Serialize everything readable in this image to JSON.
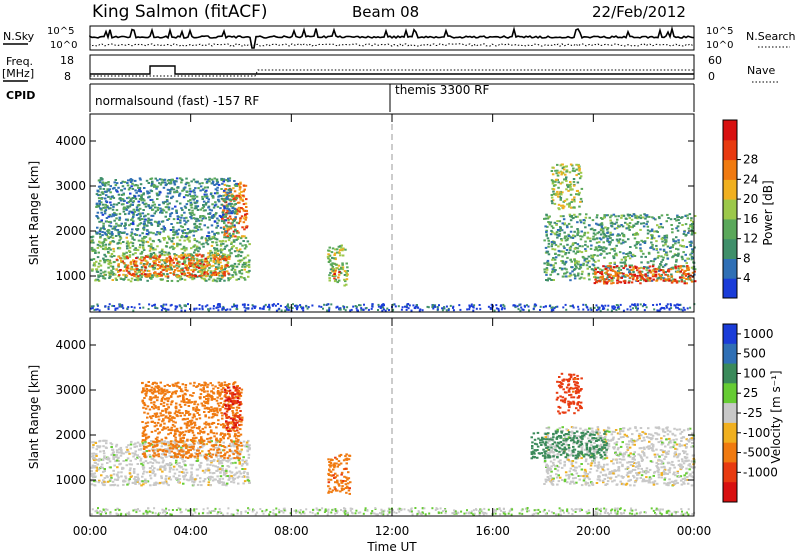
{
  "header": {
    "station": "King Salmon (fitACF)",
    "beam": "Beam 08",
    "date": "22/Feb/2012"
  },
  "top_panels": {
    "nsky_label": "N.Sky",
    "nsearch_label": "N.Search",
    "freq_label_1": "Freq.",
    "freq_label_2": "[MHz]",
    "nave_label": "Nave",
    "cpid_label": "CPID",
    "noise_left_ticks": [
      "10^5",
      "10^0"
    ],
    "noise_right_ticks": [
      "10^5",
      "10^0"
    ],
    "freq_ticks": [
      "18",
      "8"
    ],
    "nave_ticks": [
      "60",
      "0"
    ],
    "cpid_segments": [
      "normalsound (fast) -157 RF",
      "themis 3300 RF"
    ]
  },
  "colors": {
    "power_scale": [
      "#1a3cd8",
      "#2f6fb5",
      "#3f8f6a",
      "#5aa85a",
      "#9cc84a",
      "#f0b020",
      "#f07a10",
      "#e83a10",
      "#d81010"
    ],
    "velocity_scale": [
      "#1a3cd8",
      "#2f6fb5",
      "#3a8a5a",
      "#66cc33",
      "#c8c8c8",
      "#f0b020",
      "#f07a10",
      "#e83a10",
      "#d81010"
    ]
  },
  "chart_data": [
    {
      "type": "heatmap",
      "panel": "power",
      "ylabel": "Slant Range [km]",
      "ylim": [
        200,
        4600
      ],
      "yticks": [
        "1000",
        "2000",
        "3000",
        "4000"
      ],
      "colorbar_label": "Power [dB]",
      "colorbar_ticks": [
        "4",
        "8",
        "12",
        "16",
        "20",
        "24",
        "28"
      ],
      "blobs": [
        {
          "x0": 0.0,
          "x1": 6.3,
          "y0": 900,
          "y1": 1900,
          "value": 12
        },
        {
          "x0": 1.0,
          "x1": 5.5,
          "y0": 1000,
          "y1": 1500,
          "value": 22
        },
        {
          "x0": 5.2,
          "x1": 6.2,
          "y0": 1900,
          "y1": 3100,
          "value": 22
        },
        {
          "x0": 0.2,
          "x1": 5.8,
          "y0": 1900,
          "y1": 3200,
          "value": 8
        },
        {
          "x0": 9.4,
          "x1": 10.2,
          "y0": 800,
          "y1": 1700,
          "value": 14
        },
        {
          "x0": 9.6,
          "x1": 9.9,
          "y0": 950,
          "y1": 1150,
          "value": 24
        },
        {
          "x0": 18.0,
          "x1": 24.0,
          "y0": 900,
          "y1": 2400,
          "value": 10
        },
        {
          "x0": 20.0,
          "x1": 24.0,
          "y0": 850,
          "y1": 1250,
          "value": 24
        },
        {
          "x0": 18.3,
          "x1": 19.5,
          "y0": 2500,
          "y1": 3500,
          "value": 14
        }
      ]
    },
    {
      "type": "heatmap",
      "panel": "velocity",
      "ylabel": "Slant Range [km]",
      "ylim": [
        200,
        4600
      ],
      "yticks": [
        "1000",
        "2000",
        "3000",
        "4000"
      ],
      "colorbar_label": "Velocity [m s⁻¹]",
      "colorbar_ticks": [
        "1000",
        "500",
        "100",
        "25",
        "-25",
        "-100",
        "-500",
        "-1000"
      ],
      "xlabel": "Time UT",
      "xticks": [
        "00:00",
        "04:00",
        "08:00",
        "12:00",
        "16:00",
        "20:00",
        "00:00"
      ],
      "blobs": [
        {
          "x0": 0.0,
          "x1": 6.3,
          "y0": 900,
          "y1": 1900,
          "value": 0
        },
        {
          "x0": 2.0,
          "x1": 6.0,
          "y0": 1500,
          "y1": 3200,
          "value": -300
        },
        {
          "x0": 5.3,
          "x1": 6.0,
          "y0": 2100,
          "y1": 3100,
          "value": -900
        },
        {
          "x0": 9.4,
          "x1": 10.3,
          "y0": 700,
          "y1": 1600,
          "value": -400
        },
        {
          "x0": 18.0,
          "x1": 24.0,
          "y0": 900,
          "y1": 2200,
          "value": 0
        },
        {
          "x0": 18.5,
          "x1": 19.5,
          "y0": 2500,
          "y1": 3400,
          "value": -700
        },
        {
          "x0": 17.5,
          "x1": 20.5,
          "y0": 1500,
          "y1": 2100,
          "value": 150
        }
      ]
    }
  ]
}
